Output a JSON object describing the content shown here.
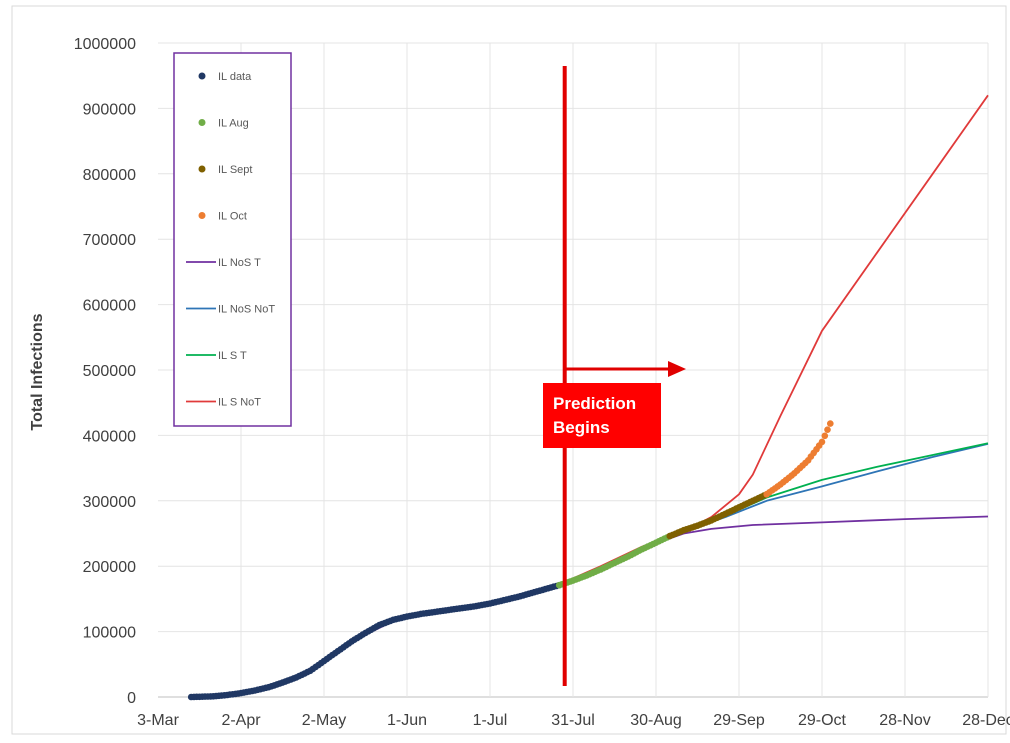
{
  "chart_data": {
    "type": "line",
    "ylabel": "Total Infections",
    "xlabel": "",
    "ylim": [
      0,
      1000000
    ],
    "y_ticks": [
      "0",
      "100000",
      "200000",
      "300000",
      "400000",
      "500000",
      "600000",
      "700000",
      "800000",
      "900000",
      "1000000"
    ],
    "x_day_range": [
      0,
      300
    ],
    "x_tick_labels": [
      "3-Mar",
      "2-Apr",
      "2-May",
      "1-Jun",
      "1-Jul",
      "31-Jul",
      "30-Aug",
      "29-Sep",
      "29-Oct",
      "28-Nov",
      "28-Dec"
    ],
    "grid": true,
    "legend_position": "top-left",
    "series": [
      {
        "name": "IL data",
        "kind": "scatter",
        "color": "#203864",
        "points": [
          [
            12,
            0
          ],
          [
            20,
            1000
          ],
          [
            25,
            3000
          ],
          [
            30,
            6000
          ],
          [
            35,
            10000
          ],
          [
            40,
            15000
          ],
          [
            45,
            22000
          ],
          [
            50,
            30000
          ],
          [
            55,
            40000
          ],
          [
            60,
            55000
          ],
          [
            65,
            70000
          ],
          [
            70,
            85000
          ],
          [
            75,
            98000
          ],
          [
            80,
            110000
          ],
          [
            85,
            118000
          ],
          [
            90,
            123000
          ],
          [
            95,
            127000
          ],
          [
            100,
            130000
          ],
          [
            105,
            133000
          ],
          [
            110,
            136000
          ],
          [
            115,
            139000
          ],
          [
            120,
            143000
          ],
          [
            125,
            148000
          ],
          [
            130,
            153000
          ],
          [
            135,
            159000
          ],
          [
            140,
            165000
          ],
          [
            145,
            171000
          ]
        ]
      },
      {
        "name": "IL Aug",
        "kind": "scatter",
        "color": "#70ad47",
        "points": [
          [
            145,
            171000
          ],
          [
            150,
            178000
          ],
          [
            155,
            186000
          ],
          [
            160,
            195000
          ],
          [
            165,
            205000
          ],
          [
            170,
            215000
          ],
          [
            175,
            226000
          ],
          [
            180,
            236000
          ],
          [
            185,
            246000
          ]
        ]
      },
      {
        "name": "IL Sept",
        "kind": "scatter",
        "color": "#7f6000",
        "points": [
          [
            185,
            246000
          ],
          [
            190,
            255000
          ],
          [
            195,
            262000
          ],
          [
            200,
            270000
          ],
          [
            205,
            280000
          ],
          [
            210,
            290000
          ],
          [
            215,
            300000
          ],
          [
            220,
            310000
          ]
        ]
      },
      {
        "name": "IL Oct",
        "kind": "scatter",
        "color": "#ed7d31",
        "points": [
          [
            220,
            310000
          ],
          [
            225,
            325000
          ],
          [
            230,
            342000
          ],
          [
            235,
            362000
          ],
          [
            240,
            390000
          ],
          [
            243,
            418000
          ]
        ]
      },
      {
        "name": "IL NoS T",
        "kind": "line",
        "color": "#7030a0",
        "points": [
          [
            12,
            0
          ],
          [
            30,
            6000
          ],
          [
            50,
            30000
          ],
          [
            70,
            85000
          ],
          [
            85,
            116000
          ],
          [
            100,
            130000
          ],
          [
            120,
            142000
          ],
          [
            140,
            163000
          ],
          [
            150,
            176000
          ],
          [
            165,
            205000
          ],
          [
            180,
            235000
          ],
          [
            190,
            250000
          ],
          [
            200,
            257000
          ],
          [
            215,
            263000
          ],
          [
            240,
            267000
          ],
          [
            270,
            272000
          ],
          [
            300,
            276000
          ]
        ]
      },
      {
        "name": "IL NoS NoT",
        "kind": "line",
        "color": "#2e75b6",
        "points": [
          [
            145,
            171000
          ],
          [
            160,
            196000
          ],
          [
            175,
            226000
          ],
          [
            190,
            253000
          ],
          [
            205,
            275000
          ],
          [
            220,
            300000
          ],
          [
            240,
            322000
          ],
          [
            260,
            345000
          ],
          [
            280,
            367000
          ],
          [
            300,
            387000
          ]
        ]
      },
      {
        "name": "IL S T",
        "kind": "line",
        "color": "#00b050",
        "points": [
          [
            145,
            171000
          ],
          [
            160,
            196000
          ],
          [
            175,
            226000
          ],
          [
            190,
            253000
          ],
          [
            205,
            277000
          ],
          [
            220,
            305000
          ],
          [
            240,
            332000
          ],
          [
            260,
            352000
          ],
          [
            280,
            370000
          ],
          [
            300,
            388000
          ]
        ]
      },
      {
        "name": "IL S NoT",
        "kind": "line",
        "color": "#e03a3a",
        "points": [
          [
            145,
            172000
          ],
          [
            160,
            200000
          ],
          [
            175,
            230000
          ],
          [
            190,
            253000
          ],
          [
            200,
            275000
          ],
          [
            210,
            310000
          ],
          [
            215,
            340000
          ],
          [
            225,
            430000
          ],
          [
            240,
            560000
          ],
          [
            260,
            680000
          ],
          [
            280,
            800000
          ],
          [
            300,
            920000
          ]
        ]
      }
    ],
    "annotations": {
      "prediction_label_line1": "Prediction",
      "prediction_label_line2": "Begins",
      "prediction_day": 147,
      "line_color": "#e00000"
    }
  }
}
